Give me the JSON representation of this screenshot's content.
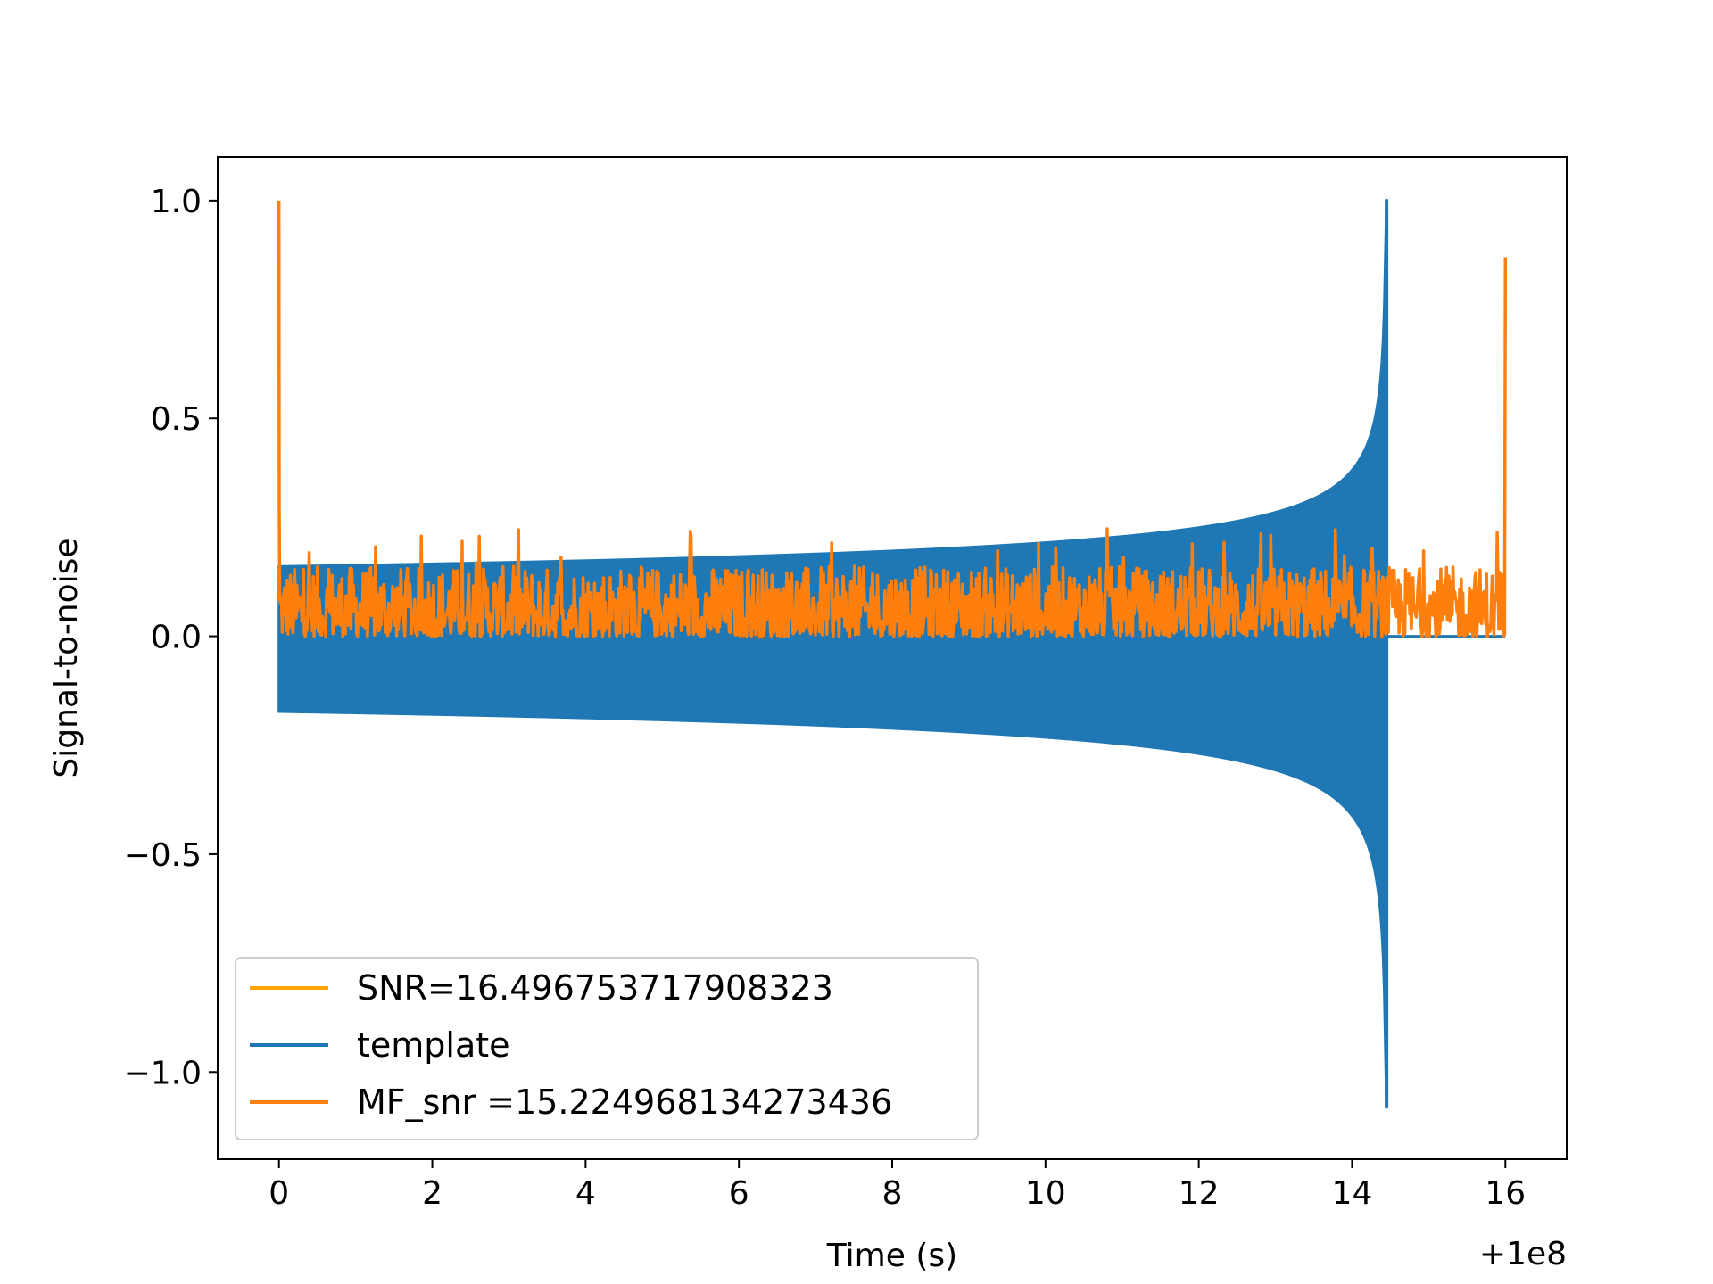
{
  "chart_data": {
    "type": "line",
    "title": "",
    "xlabel": "Time (s)",
    "ylabel": "Signal-to-noise",
    "x_offset_label": "+1e8",
    "xlim": [
      -0.8,
      16.8
    ],
    "ylim": [
      -1.2,
      1.1
    ],
    "x_ticks": [
      0,
      2,
      4,
      6,
      8,
      10,
      12,
      14,
      16
    ],
    "x_tick_labels": [
      "0",
      "2",
      "4",
      "6",
      "8",
      "10",
      "12",
      "14",
      "16"
    ],
    "y_ticks": [
      1.0,
      0.5,
      0.0,
      -0.5,
      -1.0
    ],
    "y_tick_labels": [
      "1.0",
      "0.5",
      "0.0",
      "−0.5",
      "−1.0"
    ],
    "grid": false,
    "legend_position": "lower-left",
    "colors": {
      "snr": "#ffa500",
      "template": "#1f77b4",
      "mf_snr": "#ff7f0e"
    },
    "series": [
      {
        "name": "SNR=16.496753717908323",
        "color": "#ffa500",
        "description_points": {
          "x": [],
          "y": []
        }
      },
      {
        "name": "template",
        "color": "#1f77b4",
        "kind": "chirp",
        "t_start": 0.0,
        "t_merger": 14.45,
        "t_end": 16.0,
        "envelope_start": 0.16,
        "envelope_mid_10s": 0.21,
        "peak_max": 1.0,
        "peak_min": -1.08,
        "post_merger": 0.0
      },
      {
        "name": "MF_snr =15.224968134273436",
        "color": "#ff7f0e",
        "kind": "noise",
        "t_start": 0.0,
        "t_end": 16.0,
        "spike_start": 1.0,
        "spike_end": 0.87,
        "baseline_low": 0.0,
        "baseline_high": 0.16,
        "noise_peak": 0.25
      }
    ]
  }
}
